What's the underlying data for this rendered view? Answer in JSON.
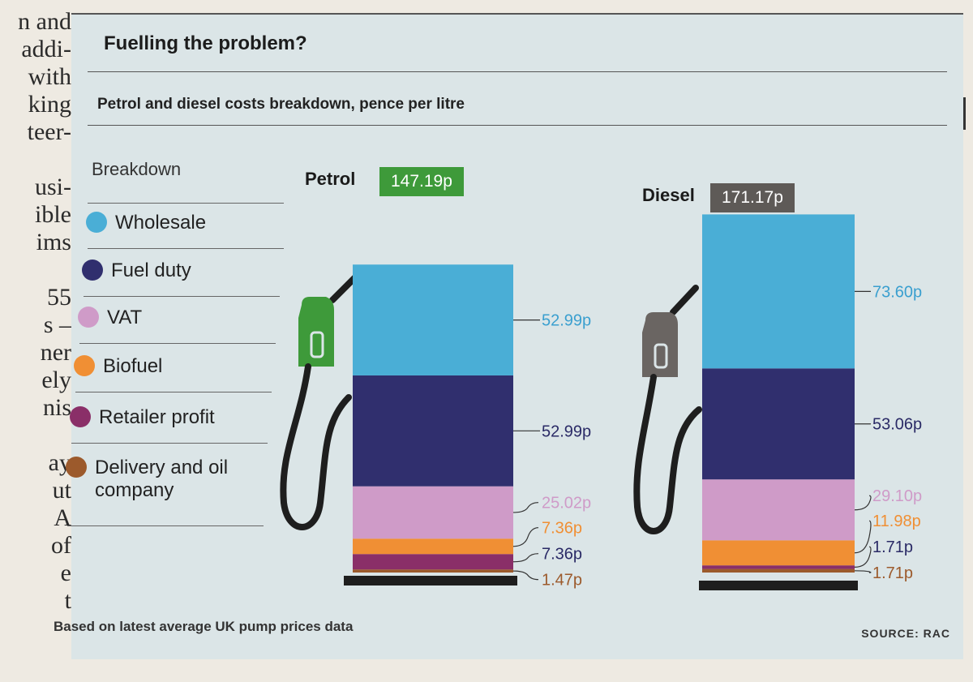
{
  "page_margin_text": [
    "n and",
    "addi-",
    "with",
    "king",
    "teer-",
    "",
    "usi-",
    "ible",
    "ims",
    "",
    "55",
    "s –",
    "ner",
    "ely",
    "nis",
    "",
    "ay",
    "ut",
    "A",
    "of",
    "e",
    "t"
  ],
  "chart_data": {
    "type": "bar",
    "title": "Fuelling the problem?",
    "subtitle": "Petrol and diesel costs breakdown, pence per litre",
    "legend_title": "Breakdown",
    "categories": [
      "Wholesale",
      "Fuel duty",
      "VAT",
      "Biofuel",
      "Retailer profit",
      "Delivery and oil company"
    ],
    "colors": [
      "#4aaed6",
      "#302f6e",
      "#cf9bc8",
      "#f08f34",
      "#8a2f68",
      "#9c5a2c"
    ],
    "series": [
      {
        "name": "Petrol",
        "total": "147.19p",
        "badge_color": "#3e9a3a",
        "values": [
          52.99,
          52.99,
          25.02,
          7.36,
          7.36,
          1.47
        ],
        "labels": [
          "52.99p",
          "52.99p",
          "25.02p",
          "7.36p",
          "7.36p",
          "1.47p"
        ]
      },
      {
        "name": "Diesel",
        "total": "171.17p",
        "badge_color": "#5e5a57",
        "values": [
          73.6,
          53.06,
          29.1,
          11.98,
          1.71,
          1.71
        ],
        "labels": [
          "73.60p",
          "53.06p",
          "29.10p",
          "11.98p",
          "1.71p",
          "1.71p"
        ]
      }
    ],
    "footer": "Based on latest average UK pump prices data",
    "source": "SOURCE: RAC"
  }
}
